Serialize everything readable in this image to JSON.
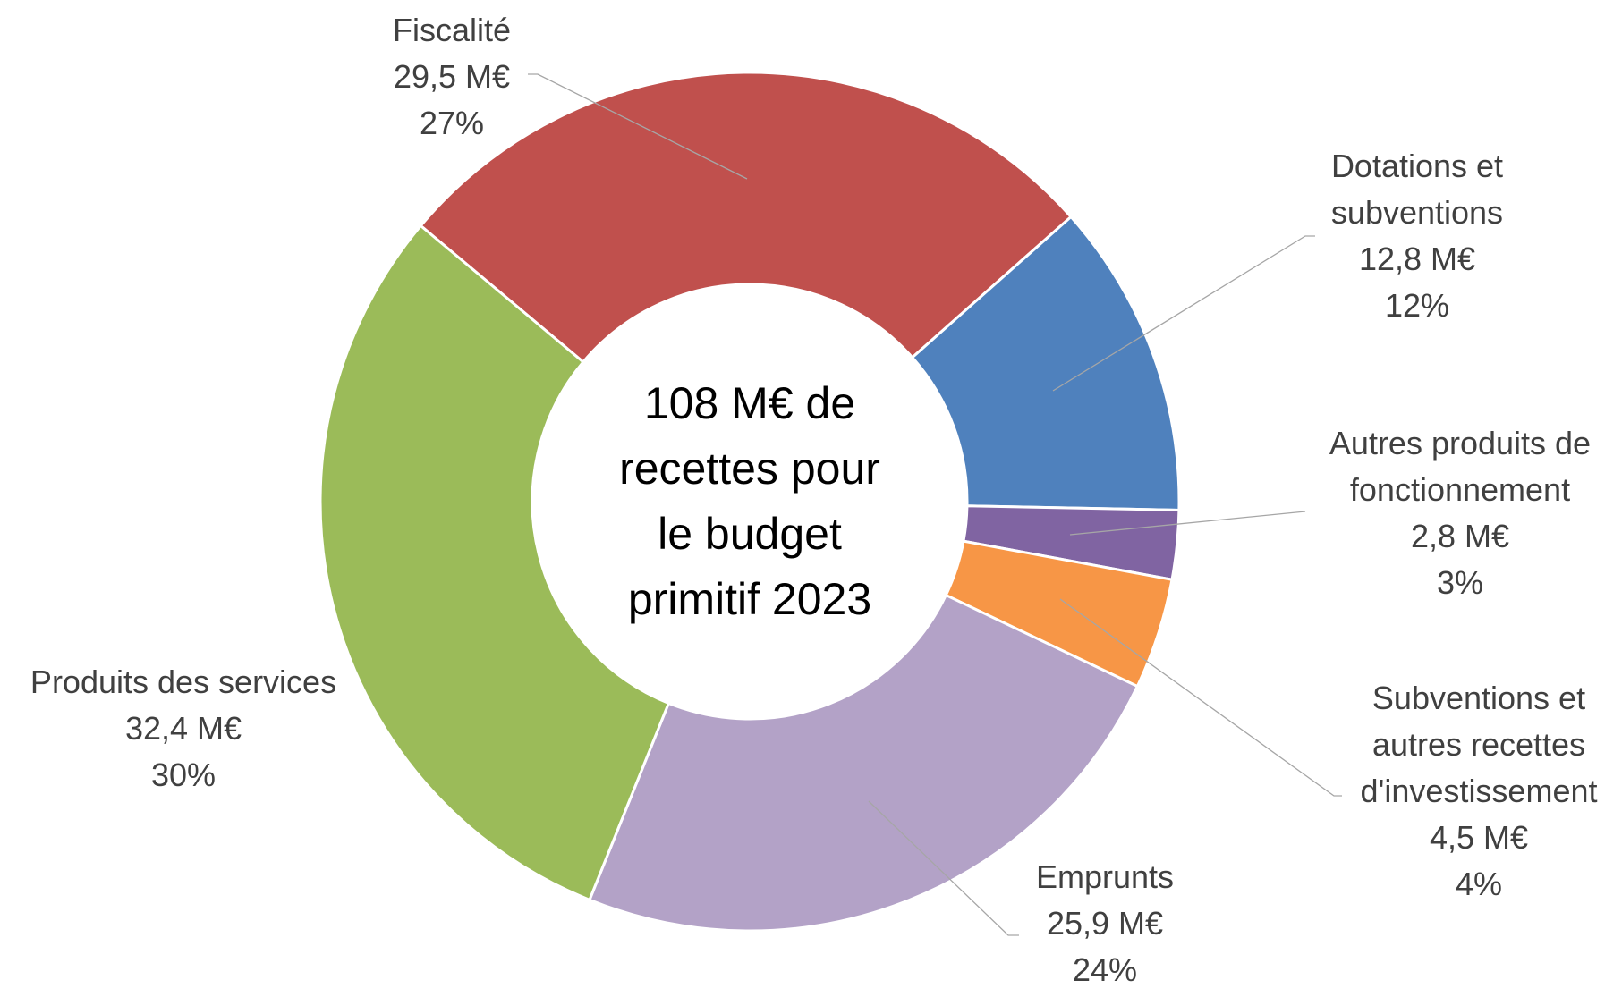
{
  "chart_data": {
    "type": "donut",
    "center_text": [
      "108 M€ de",
      "recettes pour",
      "le budget",
      "primitif 2023"
    ],
    "categories": [
      "Fiscalité",
      "Dotations et subventions",
      "Autres produits de fonctionnement",
      "Subventions et autres recettes d'investissement",
      "Emprunts",
      "Produits des services"
    ],
    "values": [
      29.5,
      12.8,
      2.8,
      4.5,
      25.9,
      32.4
    ],
    "value_labels": [
      "29,5 M€",
      "12,8 M€",
      "2,8 M€",
      "4,5 M€",
      "25,9 M€",
      "32,4 M€"
    ],
    "percents": [
      27,
      12,
      3,
      4,
      24,
      30
    ],
    "percent_labels": [
      "27%",
      "12%",
      "3%",
      "4%",
      "24%",
      "30%"
    ],
    "colors": [
      "#c0504d",
      "#4f81bd",
      "#8064a2",
      "#f79646",
      "#b3a2c7",
      "#9bbb59"
    ]
  }
}
